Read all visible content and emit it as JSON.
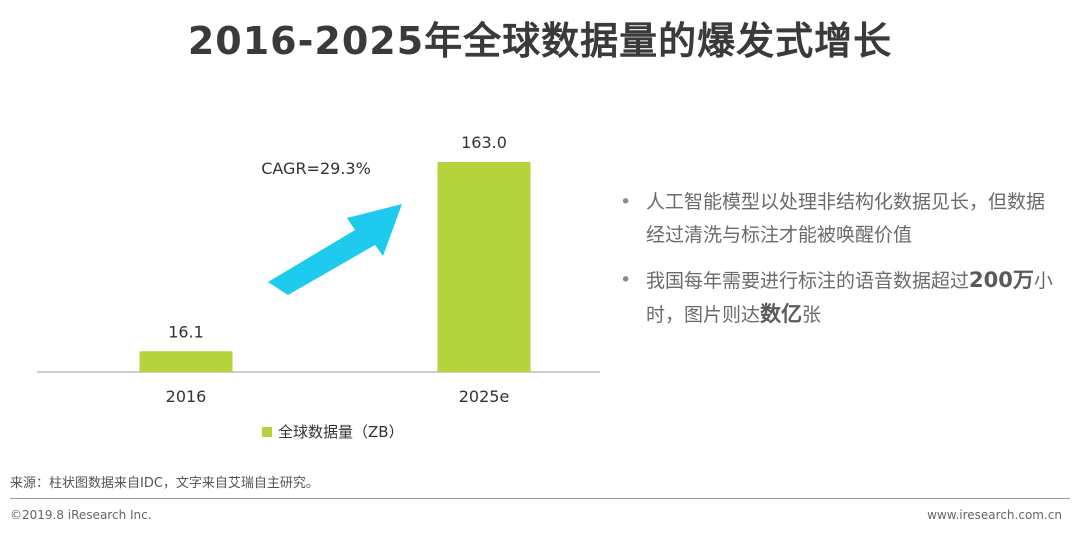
{
  "title": "2016-2025年全球数据量的爆发式增长",
  "chart_data": {
    "type": "bar",
    "categories": [
      "2016",
      "2025e"
    ],
    "series": [
      {
        "name": "全球数据量（ZB）",
        "values": [
          16.1,
          163.0
        ]
      }
    ],
    "data_labels": [
      "16.1",
      "163.0"
    ],
    "annotation": "CAGR=29.3%",
    "legend_position": "bottom",
    "grid": false,
    "ylim": [
      0,
      190
    ]
  },
  "colors": {
    "bar": "#b5d33c",
    "arrow": "#1ecbef"
  },
  "bullets": [
    {
      "parts": [
        {
          "t": "人工智能模型以处理非结构化数据见长，但数据经过清洗与标注才能被唤醒价值",
          "b": false
        }
      ]
    },
    {
      "parts": [
        {
          "t": "我国每年需要进行标注的语音数据超过",
          "b": false
        },
        {
          "t": "200万",
          "b": true
        },
        {
          "t": "小时，图片则达",
          "b": false
        },
        {
          "t": "数亿",
          "b": true
        },
        {
          "t": "张",
          "b": false
        }
      ]
    }
  ],
  "source": "来源：柱状图数据来自IDC，文字来自艾瑞自主研究。",
  "footer": {
    "left": "©2019.8 iResearch Inc.",
    "right": "www.iresearch.com.cn"
  }
}
